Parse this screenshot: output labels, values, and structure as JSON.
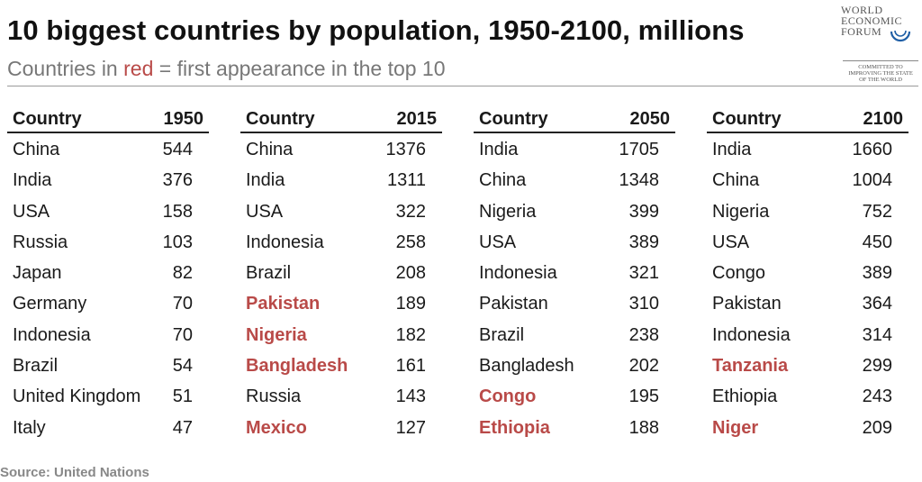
{
  "title": "10 biggest countries by population, 1950-2100, millions",
  "subtitle": {
    "before": "Countries in ",
    "red": "red",
    "after": " = first appearance in the top 10"
  },
  "logo": {
    "line1": "WORLD",
    "line2": "ECONOMIC",
    "line3": "FORUM",
    "committed1": "COMMITTED TO",
    "committed2": "IMPROVING THE STATE",
    "committed3": "OF THE WORLD"
  },
  "highlight_color": "#b94a48",
  "tables": [
    {
      "country_header": "Country",
      "year": "1950",
      "rows": [
        {
          "country": "China",
          "value": "544",
          "first": false
        },
        {
          "country": "India",
          "value": "376",
          "first": false
        },
        {
          "country": "USA",
          "value": "158",
          "first": false
        },
        {
          "country": "Russia",
          "value": "103",
          "first": false
        },
        {
          "country": "Japan",
          "value": "82",
          "first": false
        },
        {
          "country": "Germany",
          "value": "70",
          "first": false
        },
        {
          "country": "Indonesia",
          "value": "70",
          "first": false
        },
        {
          "country": "Brazil",
          "value": "54",
          "first": false
        },
        {
          "country": "United Kingdom",
          "value": "51",
          "first": false
        },
        {
          "country": "Italy",
          "value": "47",
          "first": false
        }
      ]
    },
    {
      "country_header": "Country",
      "year": "2015",
      "rows": [
        {
          "country": "China",
          "value": "1376",
          "first": false
        },
        {
          "country": "India",
          "value": "1311",
          "first": false
        },
        {
          "country": "USA",
          "value": "322",
          "first": false
        },
        {
          "country": "Indonesia",
          "value": "258",
          "first": false
        },
        {
          "country": "Brazil",
          "value": "208",
          "first": false
        },
        {
          "country": "Pakistan",
          "value": "189",
          "first": true
        },
        {
          "country": "Nigeria",
          "value": "182",
          "first": true
        },
        {
          "country": "Bangladesh",
          "value": "161",
          "first": true
        },
        {
          "country": "Russia",
          "value": "143",
          "first": false
        },
        {
          "country": "Mexico",
          "value": "127",
          "first": true
        }
      ]
    },
    {
      "country_header": "Country",
      "year": "2050",
      "rows": [
        {
          "country": "India",
          "value": "1705",
          "first": false
        },
        {
          "country": "China",
          "value": "1348",
          "first": false
        },
        {
          "country": "Nigeria",
          "value": "399",
          "first": false
        },
        {
          "country": "USA",
          "value": "389",
          "first": false
        },
        {
          "country": "Indonesia",
          "value": "321",
          "first": false
        },
        {
          "country": "Pakistan",
          "value": "310",
          "first": false
        },
        {
          "country": "Brazil",
          "value": "238",
          "first": false
        },
        {
          "country": "Bangladesh",
          "value": "202",
          "first": false
        },
        {
          "country": "Congo",
          "value": "195",
          "first": true
        },
        {
          "country": "Ethiopia",
          "value": "188",
          "first": true
        }
      ]
    },
    {
      "country_header": "Country",
      "year": "2100",
      "rows": [
        {
          "country": "India",
          "value": "1660",
          "first": false
        },
        {
          "country": "China",
          "value": "1004",
          "first": false
        },
        {
          "country": "Nigeria",
          "value": "752",
          "first": false
        },
        {
          "country": "USA",
          "value": "450",
          "first": false
        },
        {
          "country": "Congo",
          "value": "389",
          "first": false
        },
        {
          "country": "Pakistan",
          "value": "364",
          "first": false
        },
        {
          "country": "Indonesia",
          "value": "314",
          "first": false
        },
        {
          "country": "Tanzania",
          "value": "299",
          "first": true
        },
        {
          "country": "Ethiopia",
          "value": "243",
          "first": false
        },
        {
          "country": "Niger",
          "value": "209",
          "first": true
        }
      ]
    }
  ],
  "source": "Source: United Nations"
}
